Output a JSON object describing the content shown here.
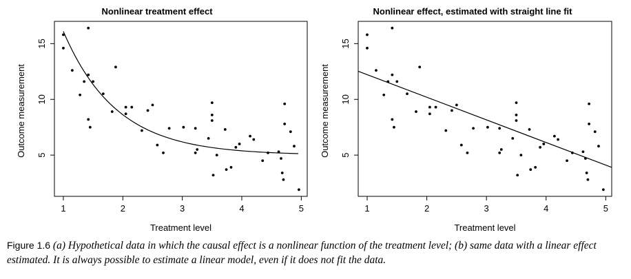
{
  "chart_data": [
    {
      "type": "scatter",
      "title": "Nonlinear treatment effect",
      "xlabel": "Treatment level",
      "ylabel": "Outcome measurement",
      "xlim": [
        0.85,
        5.1
      ],
      "ylim": [
        1.3,
        17.0
      ],
      "xticks": [
        1,
        2,
        3,
        4,
        5
      ],
      "yticks": [
        5,
        10,
        15
      ],
      "points": [
        [
          1.0,
          15.8
        ],
        [
          1.0,
          14.6
        ],
        [
          1.15,
          12.6
        ],
        [
          1.28,
          10.4
        ],
        [
          1.35,
          11.6
        ],
        [
          1.42,
          16.4
        ],
        [
          1.42,
          12.2
        ],
        [
          1.42,
          8.2
        ],
        [
          1.45,
          7.5
        ],
        [
          1.5,
          11.6
        ],
        [
          1.67,
          10.5
        ],
        [
          1.82,
          8.9
        ],
        [
          1.88,
          12.9
        ],
        [
          2.05,
          9.3
        ],
        [
          2.05,
          8.7
        ],
        [
          2.15,
          9.3
        ],
        [
          2.32,
          7.2
        ],
        [
          2.42,
          9.0
        ],
        [
          2.5,
          9.5
        ],
        [
          2.58,
          5.9
        ],
        [
          2.68,
          5.2
        ],
        [
          2.78,
          7.4
        ],
        [
          3.02,
          7.5
        ],
        [
          3.22,
          7.4
        ],
        [
          3.22,
          5.2
        ],
        [
          3.25,
          5.5
        ],
        [
          3.44,
          6.5
        ],
        [
          3.5,
          9.7
        ],
        [
          3.5,
          8.6
        ],
        [
          3.5,
          8.1
        ],
        [
          3.52,
          3.2
        ],
        [
          3.58,
          5.0
        ],
        [
          3.72,
          7.3
        ],
        [
          3.74,
          3.7
        ],
        [
          3.82,
          3.9
        ],
        [
          3.9,
          5.7
        ],
        [
          3.96,
          6.0
        ],
        [
          4.14,
          6.7
        ],
        [
          4.2,
          6.4
        ],
        [
          4.35,
          4.5
        ],
        [
          4.44,
          5.2
        ],
        [
          4.62,
          5.3
        ],
        [
          4.66,
          4.7
        ],
        [
          4.68,
          3.4
        ],
        [
          4.7,
          2.8
        ],
        [
          4.72,
          7.8
        ],
        [
          4.72,
          9.6
        ],
        [
          4.82,
          7.1
        ],
        [
          4.88,
          5.8
        ],
        [
          4.96,
          1.9
        ]
      ],
      "fit": {
        "kind": "exponential",
        "x_range": [
          1.0,
          4.95
        ],
        "asymptote": 5.0,
        "amplitude_at_x1": 11.1,
        "rate": 1.12
      }
    },
    {
      "type": "scatter",
      "title": "Nonlinear effect, estimated with straight line fit",
      "xlabel": "Treatment level",
      "ylabel": "Outcome measurement",
      "xlim": [
        0.85,
        5.1
      ],
      "ylim": [
        1.3,
        17.0
      ],
      "xticks": [
        1,
        2,
        3,
        4,
        5
      ],
      "yticks": [
        5,
        10,
        15
      ],
      "points": [
        [
          1.0,
          15.8
        ],
        [
          1.0,
          14.6
        ],
        [
          1.15,
          12.6
        ],
        [
          1.28,
          10.4
        ],
        [
          1.35,
          11.6
        ],
        [
          1.42,
          16.4
        ],
        [
          1.42,
          12.2
        ],
        [
          1.42,
          8.2
        ],
        [
          1.45,
          7.5
        ],
        [
          1.5,
          11.6
        ],
        [
          1.67,
          10.5
        ],
        [
          1.82,
          8.9
        ],
        [
          1.88,
          12.9
        ],
        [
          2.05,
          9.3
        ],
        [
          2.05,
          8.7
        ],
        [
          2.15,
          9.3
        ],
        [
          2.32,
          7.2
        ],
        [
          2.42,
          9.0
        ],
        [
          2.5,
          9.5
        ],
        [
          2.58,
          5.9
        ],
        [
          2.68,
          5.2
        ],
        [
          2.78,
          7.4
        ],
        [
          3.02,
          7.5
        ],
        [
          3.22,
          7.4
        ],
        [
          3.22,
          5.2
        ],
        [
          3.25,
          5.5
        ],
        [
          3.44,
          6.5
        ],
        [
          3.5,
          9.7
        ],
        [
          3.5,
          8.6
        ],
        [
          3.5,
          8.1
        ],
        [
          3.52,
          3.2
        ],
        [
          3.58,
          5.0
        ],
        [
          3.72,
          7.3
        ],
        [
          3.74,
          3.7
        ],
        [
          3.82,
          3.9
        ],
        [
          3.9,
          5.7
        ],
        [
          3.96,
          6.0
        ],
        [
          4.14,
          6.7
        ],
        [
          4.2,
          6.4
        ],
        [
          4.35,
          4.5
        ],
        [
          4.44,
          5.2
        ],
        [
          4.62,
          5.3
        ],
        [
          4.66,
          4.7
        ],
        [
          4.68,
          3.4
        ],
        [
          4.7,
          2.8
        ],
        [
          4.72,
          7.8
        ],
        [
          4.72,
          9.6
        ],
        [
          4.82,
          7.1
        ],
        [
          4.88,
          5.8
        ],
        [
          4.96,
          1.9
        ]
      ],
      "fit": {
        "kind": "linear",
        "x_range": [
          0.85,
          5.1
        ],
        "intercept": 14.25,
        "slope": -2.03
      }
    }
  ],
  "caption": {
    "label": "Figure 1.6",
    "text": "(a) Hypothetical data in which the causal effect is a nonlinear function of the treatment level; (b) same data with a linear effect estimated. It is always possible to estimate a linear model, even if it does not fit the data."
  },
  "colors": {
    "ink": "#000000",
    "background": "#ffffff"
  }
}
